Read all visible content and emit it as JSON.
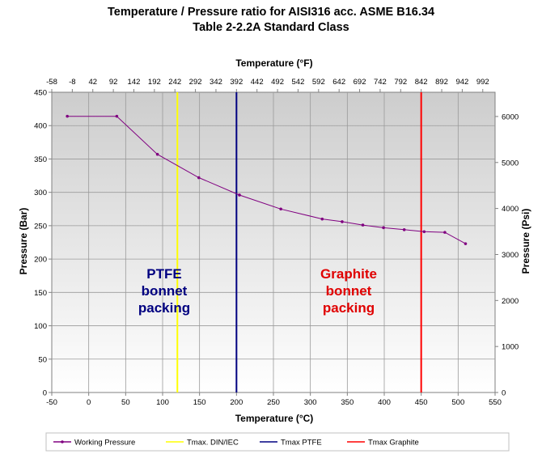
{
  "chart_data": {
    "type": "line",
    "title_line1": "Temperature / Pressure ratio for AISI316 acc. ASME B16.34",
    "title_line2": "Table 2-2.2A Standard Class",
    "xlabel": "Temperature (°C)",
    "ylabel": "Pressure (Bar)",
    "x2label": "Temperature (°F)",
    "y2label": "Pressure (Psi)",
    "xlim": [
      -50,
      550
    ],
    "ylim": [
      0,
      450
    ],
    "x_ticks": [
      "-50",
      "0",
      "50",
      "100",
      "150",
      "200",
      "250",
      "300",
      "350",
      "400",
      "450",
      "500",
      "550"
    ],
    "y_ticks": [
      "0",
      "50",
      "100",
      "150",
      "200",
      "250",
      "300",
      "350",
      "400",
      "450"
    ],
    "x2_ticks": [
      "-58",
      "-8",
      "42",
      "92",
      "142",
      "192",
      "242",
      "292",
      "342",
      "392",
      "442",
      "492",
      "542",
      "592",
      "642",
      "692",
      "742",
      "792",
      "842",
      "892",
      "942",
      "992"
    ],
    "y2_ticks": [
      "1000",
      "2000",
      "3000",
      "4000",
      "5000",
      "6000"
    ],
    "y2_zero": "0",
    "grid": true,
    "series": [
      {
        "name": "Working Pressure",
        "color": "#800080",
        "x": [
          -29,
          38,
          93,
          149,
          204,
          260,
          316,
          343,
          371,
          399,
          427,
          454,
          482,
          510
        ],
        "y": [
          414,
          414,
          357,
          322,
          296,
          275,
          260,
          256,
          251,
          247,
          244,
          241,
          240,
          223
        ]
      }
    ],
    "vlines": [
      {
        "name": "Tmax. DIN/IEC",
        "x": 120,
        "color": "#ffff00"
      },
      {
        "name": "Tmax PTFE",
        "x": 200,
        "color": "#000080"
      },
      {
        "name": "Tmax Graphite",
        "x": 450,
        "color": "#ff0000"
      }
    ],
    "annotations": [
      {
        "lines": [
          "PTFE",
          "bonnet",
          "packing"
        ],
        "color": "#000080"
      },
      {
        "lines": [
          "Graphite",
          "bonnet",
          "packing"
        ],
        "color": "#e00000"
      }
    ],
    "legend_position": "bottom"
  }
}
